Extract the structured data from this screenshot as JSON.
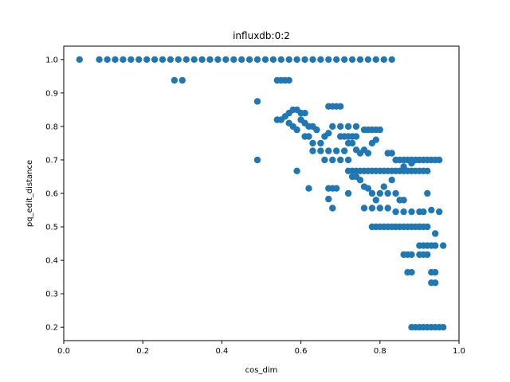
{
  "chart_data": {
    "type": "scatter",
    "title": "influxdb:0:2",
    "xlabel": "cos_dim",
    "ylabel": "pq_edit_distance",
    "xlim": [
      0.0,
      1.0
    ],
    "ylim": [
      0.16,
      1.04
    ],
    "xticks": [
      0.0,
      0.2,
      0.4,
      0.6,
      0.8,
      1.0
    ],
    "xtick_labels": [
      "0.0",
      "0.2",
      "0.4",
      "0.6",
      "0.8",
      "1.0"
    ],
    "yticks": [
      0.2,
      0.3,
      0.4,
      0.5,
      0.6,
      0.7,
      0.8,
      0.9,
      1.0
    ],
    "ytick_labels": [
      "0.2",
      "0.3",
      "0.4",
      "0.5",
      "0.6",
      "0.7",
      "0.8",
      "0.9",
      "1.0"
    ],
    "grid": false,
    "marker_color": "#1f77b4",
    "series": [
      {
        "points": [
          [
            0.04,
            1.0
          ],
          [
            0.09,
            1.0
          ],
          [
            0.11,
            1.0
          ],
          [
            0.13,
            1.0
          ],
          [
            0.15,
            1.0
          ],
          [
            0.17,
            1.0
          ],
          [
            0.19,
            1.0
          ],
          [
            0.21,
            1.0
          ],
          [
            0.23,
            1.0
          ],
          [
            0.25,
            1.0
          ],
          [
            0.27,
            1.0
          ],
          [
            0.29,
            1.0
          ],
          [
            0.31,
            1.0
          ],
          [
            0.33,
            1.0
          ],
          [
            0.35,
            1.0
          ],
          [
            0.37,
            1.0
          ],
          [
            0.39,
            1.0
          ],
          [
            0.41,
            1.0
          ],
          [
            0.43,
            1.0
          ],
          [
            0.45,
            1.0
          ],
          [
            0.47,
            1.0
          ],
          [
            0.49,
            1.0
          ],
          [
            0.51,
            1.0
          ],
          [
            0.53,
            1.0
          ],
          [
            0.55,
            1.0
          ],
          [
            0.57,
            1.0
          ],
          [
            0.59,
            1.0
          ],
          [
            0.61,
            1.0
          ],
          [
            0.63,
            1.0
          ],
          [
            0.65,
            1.0
          ],
          [
            0.67,
            1.0
          ],
          [
            0.69,
            1.0
          ],
          [
            0.71,
            1.0
          ],
          [
            0.73,
            1.0
          ],
          [
            0.75,
            1.0
          ],
          [
            0.77,
            1.0
          ],
          [
            0.79,
            1.0
          ],
          [
            0.81,
            1.0
          ],
          [
            0.83,
            1.0
          ],
          [
            0.28,
            0.938
          ],
          [
            0.3,
            0.938
          ],
          [
            0.54,
            0.938
          ],
          [
            0.55,
            0.938
          ],
          [
            0.56,
            0.938
          ],
          [
            0.57,
            0.938
          ],
          [
            0.49,
            0.875
          ],
          [
            0.49,
            0.7
          ],
          [
            0.54,
            0.82
          ],
          [
            0.55,
            0.82
          ],
          [
            0.56,
            0.83
          ],
          [
            0.57,
            0.84
          ],
          [
            0.58,
            0.85
          ],
          [
            0.59,
            0.85
          ],
          [
            0.6,
            0.84
          ],
          [
            0.61,
            0.84
          ],
          [
            0.57,
            0.81
          ],
          [
            0.58,
            0.8
          ],
          [
            0.59,
            0.79
          ],
          [
            0.6,
            0.82
          ],
          [
            0.61,
            0.81
          ],
          [
            0.62,
            0.8
          ],
          [
            0.63,
            0.8
          ],
          [
            0.59,
            0.667
          ],
          [
            0.62,
            0.615
          ],
          [
            0.61,
            0.77
          ],
          [
            0.62,
            0.77
          ],
          [
            0.63,
            0.75
          ],
          [
            0.64,
            0.79
          ],
          [
            0.65,
            0.75
          ],
          [
            0.66,
            0.77
          ],
          [
            0.67,
            0.78
          ],
          [
            0.68,
            0.8
          ],
          [
            0.7,
            0.8
          ],
          [
            0.72,
            0.8
          ],
          [
            0.74,
            0.8
          ],
          [
            0.63,
            0.727
          ],
          [
            0.65,
            0.727
          ],
          [
            0.67,
            0.727
          ],
          [
            0.69,
            0.727
          ],
          [
            0.71,
            0.727
          ],
          [
            0.66,
            0.7
          ],
          [
            0.68,
            0.7
          ],
          [
            0.7,
            0.7
          ],
          [
            0.72,
            0.7
          ],
          [
            0.67,
            0.86
          ],
          [
            0.68,
            0.86
          ],
          [
            0.69,
            0.86
          ],
          [
            0.7,
            0.86
          ],
          [
            0.67,
            0.615
          ],
          [
            0.68,
            0.615
          ],
          [
            0.69,
            0.615
          ],
          [
            0.67,
            0.583
          ],
          [
            0.68,
            0.556
          ],
          [
            0.7,
            0.77
          ],
          [
            0.71,
            0.77
          ],
          [
            0.72,
            0.77
          ],
          [
            0.73,
            0.77
          ],
          [
            0.74,
            0.77
          ],
          [
            0.72,
            0.75
          ],
          [
            0.73,
            0.75
          ],
          [
            0.74,
            0.73
          ],
          [
            0.75,
            0.72
          ],
          [
            0.76,
            0.73
          ],
          [
            0.77,
            0.72
          ],
          [
            0.78,
            0.75
          ],
          [
            0.79,
            0.76
          ],
          [
            0.76,
            0.79
          ],
          [
            0.77,
            0.79
          ],
          [
            0.78,
            0.79
          ],
          [
            0.79,
            0.79
          ],
          [
            0.8,
            0.79
          ],
          [
            0.72,
            0.667
          ],
          [
            0.73,
            0.667
          ],
          [
            0.74,
            0.667
          ],
          [
            0.75,
            0.667
          ],
          [
            0.76,
            0.667
          ],
          [
            0.77,
            0.667
          ],
          [
            0.78,
            0.667
          ],
          [
            0.79,
            0.667
          ],
          [
            0.8,
            0.667
          ],
          [
            0.81,
            0.667
          ],
          [
            0.82,
            0.667
          ],
          [
            0.83,
            0.667
          ],
          [
            0.84,
            0.667
          ],
          [
            0.85,
            0.667
          ],
          [
            0.86,
            0.667
          ],
          [
            0.87,
            0.667
          ],
          [
            0.88,
            0.667
          ],
          [
            0.89,
            0.667
          ],
          [
            0.9,
            0.667
          ],
          [
            0.91,
            0.667
          ],
          [
            0.92,
            0.667
          ],
          [
            0.72,
            0.6
          ],
          [
            0.73,
            0.65
          ],
          [
            0.74,
            0.65
          ],
          [
            0.75,
            0.64
          ],
          [
            0.76,
            0.62
          ],
          [
            0.77,
            0.615
          ],
          [
            0.78,
            0.6
          ],
          [
            0.79,
            0.58
          ],
          [
            0.8,
            0.6
          ],
          [
            0.81,
            0.62
          ],
          [
            0.82,
            0.6
          ],
          [
            0.83,
            0.64
          ],
          [
            0.84,
            0.6
          ],
          [
            0.85,
            0.58
          ],
          [
            0.86,
            0.58
          ],
          [
            0.76,
            0.556
          ],
          [
            0.78,
            0.556
          ],
          [
            0.8,
            0.556
          ],
          [
            0.82,
            0.556
          ],
          [
            0.84,
            0.545
          ],
          [
            0.86,
            0.545
          ],
          [
            0.88,
            0.545
          ],
          [
            0.9,
            0.545
          ],
          [
            0.91,
            0.545
          ],
          [
            0.95,
            0.545
          ],
          [
            0.78,
            0.5
          ],
          [
            0.79,
            0.5
          ],
          [
            0.8,
            0.5
          ],
          [
            0.81,
            0.5
          ],
          [
            0.82,
            0.5
          ],
          [
            0.83,
            0.5
          ],
          [
            0.84,
            0.5
          ],
          [
            0.85,
            0.5
          ],
          [
            0.86,
            0.5
          ],
          [
            0.87,
            0.5
          ],
          [
            0.88,
            0.5
          ],
          [
            0.89,
            0.5
          ],
          [
            0.9,
            0.5
          ],
          [
            0.91,
            0.5
          ],
          [
            0.92,
            0.5
          ],
          [
            0.82,
            0.72
          ],
          [
            0.83,
            0.72
          ],
          [
            0.84,
            0.7
          ],
          [
            0.85,
            0.7
          ],
          [
            0.86,
            0.7
          ],
          [
            0.87,
            0.7
          ],
          [
            0.88,
            0.7
          ],
          [
            0.89,
            0.7
          ],
          [
            0.9,
            0.7
          ],
          [
            0.91,
            0.7
          ],
          [
            0.92,
            0.7
          ],
          [
            0.93,
            0.7
          ],
          [
            0.94,
            0.7
          ],
          [
            0.95,
            0.7
          ],
          [
            0.86,
            0.68
          ],
          [
            0.88,
            0.69
          ],
          [
            0.86,
            0.417
          ],
          [
            0.87,
            0.417
          ],
          [
            0.88,
            0.417
          ],
          [
            0.9,
            0.417
          ],
          [
            0.91,
            0.417
          ],
          [
            0.92,
            0.417
          ],
          [
            0.87,
            0.364
          ],
          [
            0.88,
            0.364
          ],
          [
            0.93,
            0.364
          ],
          [
            0.94,
            0.364
          ],
          [
            0.93,
            0.333
          ],
          [
            0.94,
            0.333
          ],
          [
            0.9,
            0.444
          ],
          [
            0.91,
            0.444
          ],
          [
            0.92,
            0.444
          ],
          [
            0.93,
            0.444
          ],
          [
            0.94,
            0.444
          ],
          [
            0.96,
            0.444
          ],
          [
            0.9,
            0.5
          ],
          [
            0.92,
            0.6
          ],
          [
            0.93,
            0.55
          ],
          [
            0.94,
            0.48
          ],
          [
            0.88,
            0.2
          ],
          [
            0.89,
            0.2
          ],
          [
            0.9,
            0.2
          ],
          [
            0.91,
            0.2
          ],
          [
            0.92,
            0.2
          ],
          [
            0.93,
            0.2
          ],
          [
            0.94,
            0.2
          ],
          [
            0.95,
            0.2
          ],
          [
            0.96,
            0.2
          ]
        ]
      }
    ]
  }
}
